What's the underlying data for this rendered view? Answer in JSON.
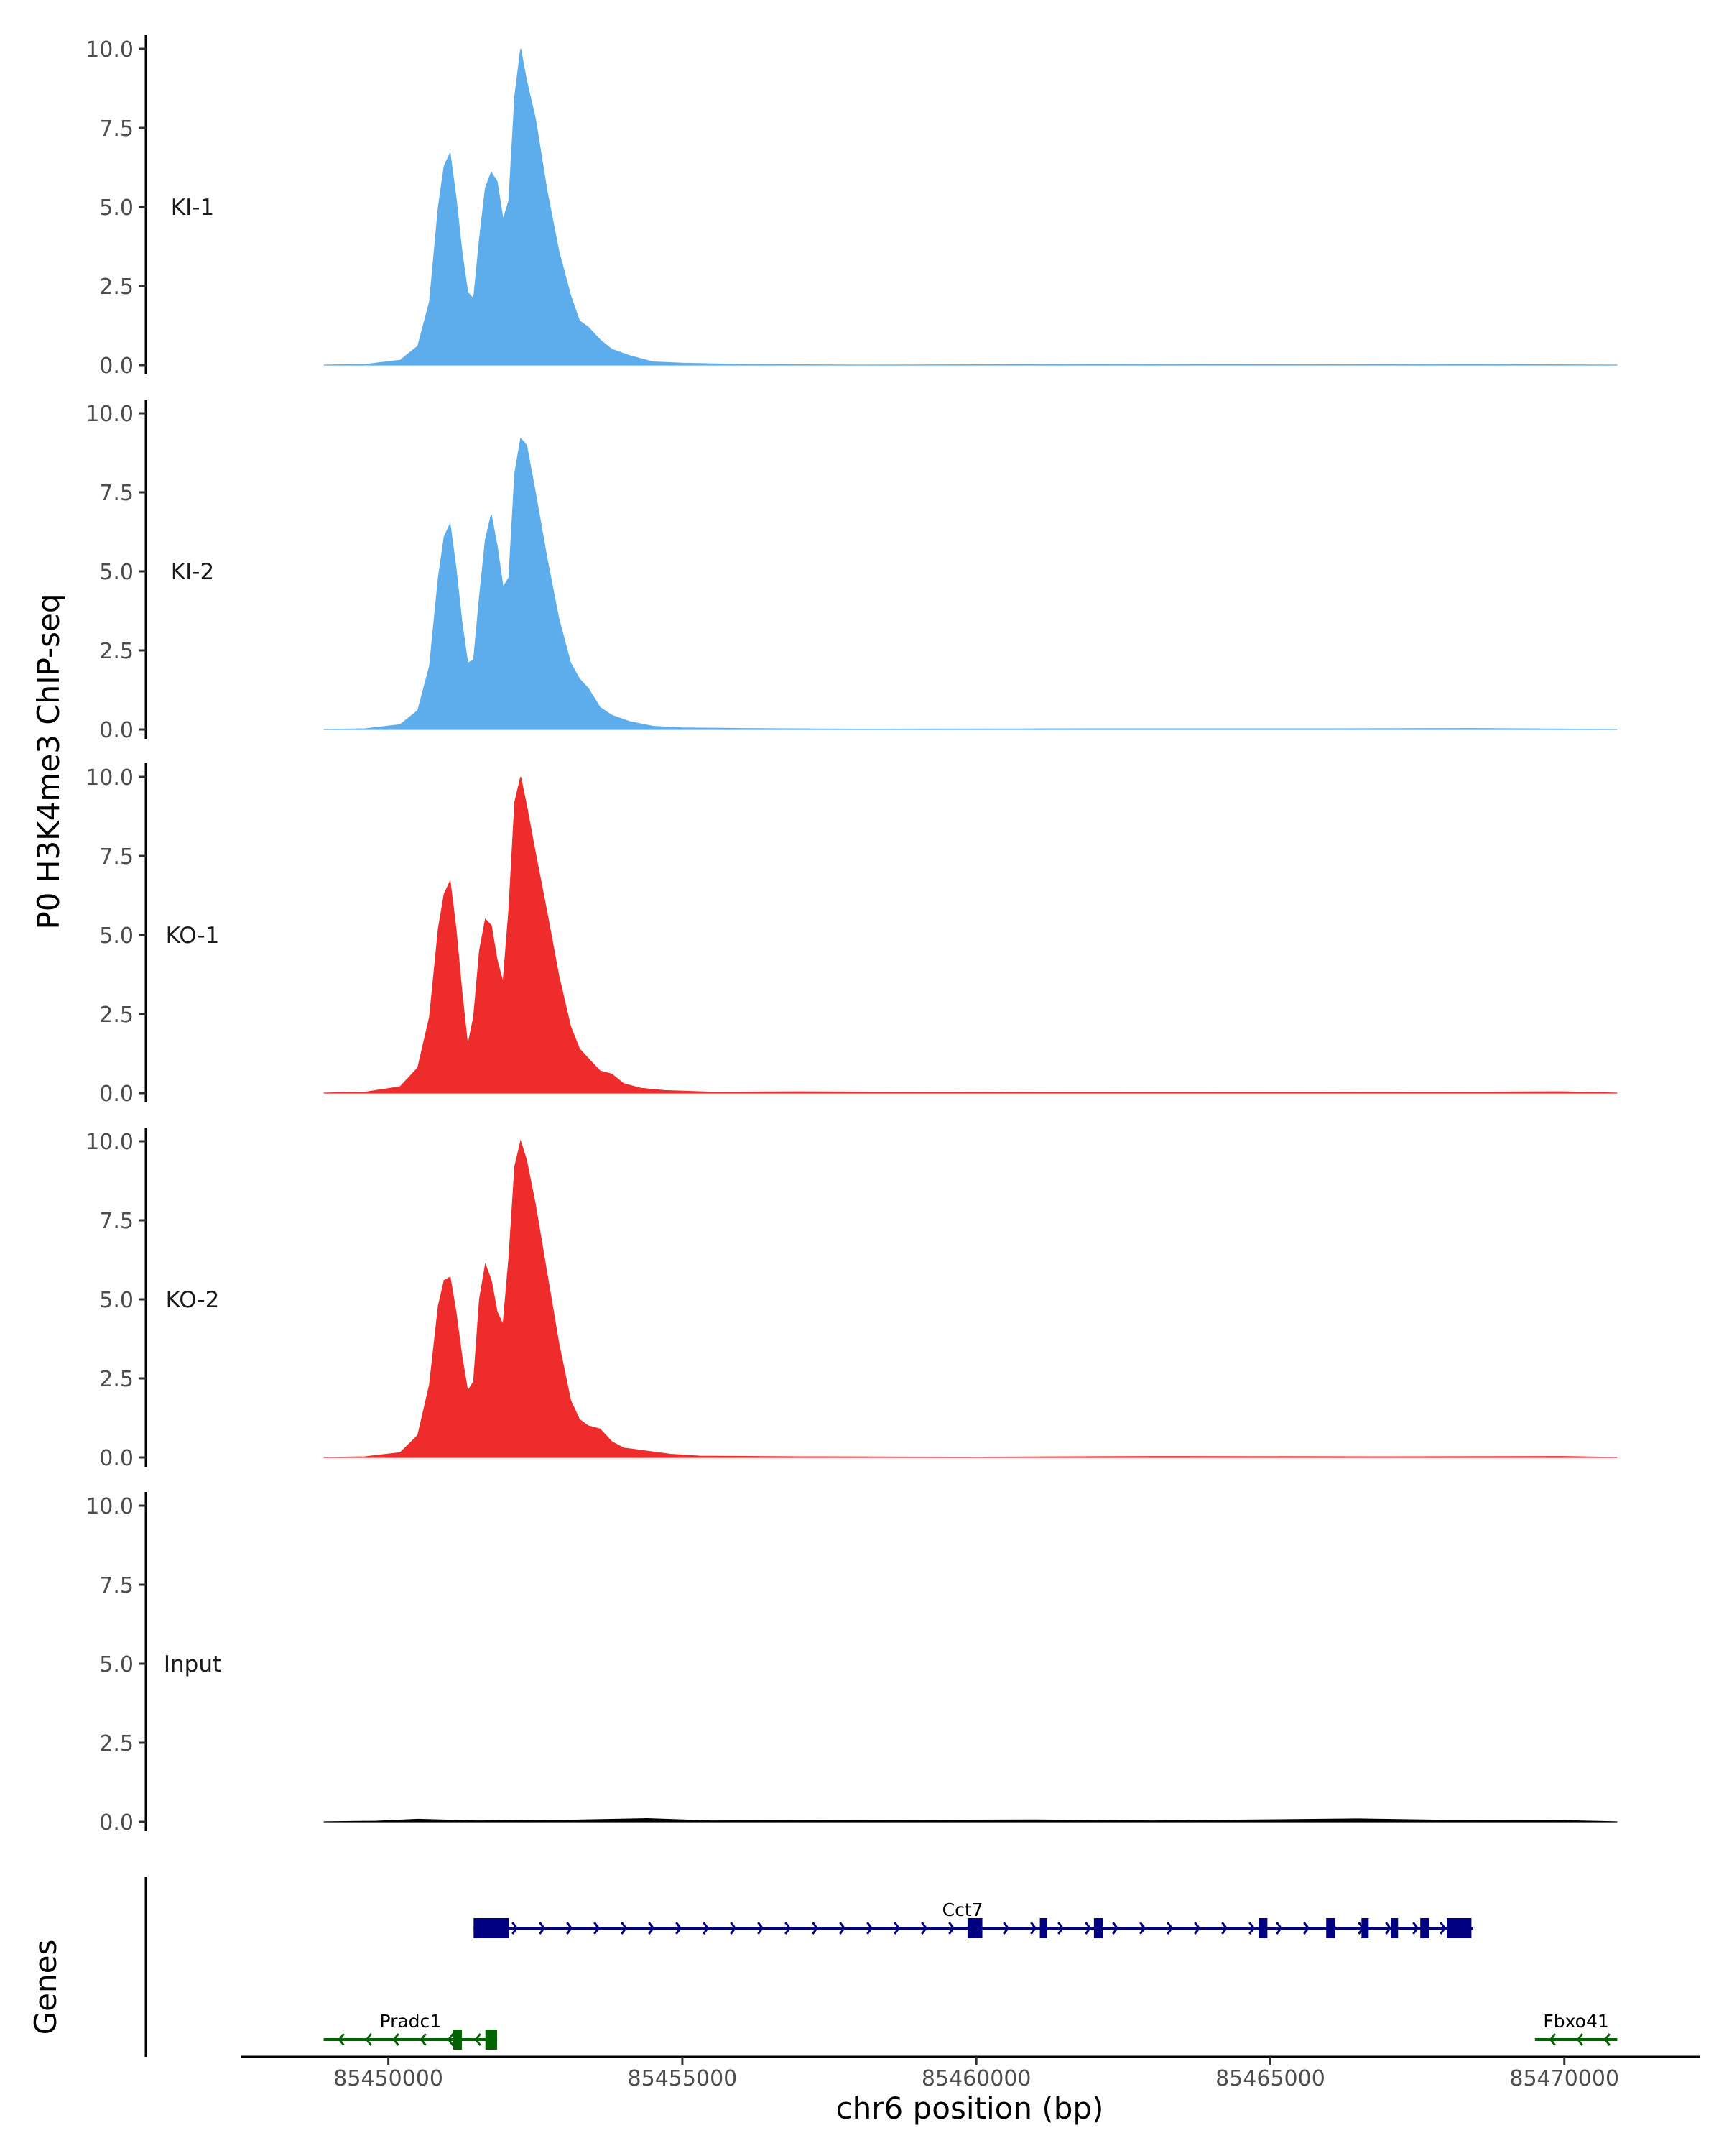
{
  "chart_data": {
    "type": "area",
    "y_axis_title": "P0 H3K4me3 ChIP-seq",
    "x_axis_title": "chr6 position (bp)",
    "xlim": [
      85447500,
      85472300
    ],
    "ylim": [
      0,
      10
    ],
    "y_ticks": [
      "0.0",
      "2.5",
      "5.0",
      "7.5",
      "10.0"
    ],
    "x_ticks": [
      85450000,
      85455000,
      85460000,
      85465000,
      85470000
    ],
    "x_tick_labels": [
      "85450000",
      "85455000",
      "85460000",
      "85465000",
      "85470000"
    ],
    "genes_track_title": "Genes",
    "tracks": [
      {
        "name": "KI-1",
        "color": "#5DADEC",
        "points": [
          [
            85448900,
            0
          ],
          [
            85449600,
            0.02
          ],
          [
            85450200,
            0.15
          ],
          [
            85450500,
            0.6
          ],
          [
            85450700,
            2
          ],
          [
            85450850,
            5
          ],
          [
            85450950,
            6.3
          ],
          [
            85451050,
            6.7
          ],
          [
            85451150,
            5.3
          ],
          [
            85451250,
            3.6
          ],
          [
            85451350,
            2.3
          ],
          [
            85451450,
            2.1
          ],
          [
            85451550,
            4
          ],
          [
            85451650,
            5.6
          ],
          [
            85451750,
            6.1
          ],
          [
            85451850,
            5.8
          ],
          [
            85451950,
            4.6
          ],
          [
            85452050,
            5.2
          ],
          [
            85452150,
            8.5
          ],
          [
            85452250,
            10
          ],
          [
            85452350,
            9
          ],
          [
            85452500,
            7.8
          ],
          [
            85452700,
            5.5
          ],
          [
            85452900,
            3.6
          ],
          [
            85453100,
            2.2
          ],
          [
            85453250,
            1.4
          ],
          [
            85453400,
            1.2
          ],
          [
            85453600,
            0.8
          ],
          [
            85453800,
            0.5
          ],
          [
            85454100,
            0.3
          ],
          [
            85454500,
            0.1
          ],
          [
            85455000,
            0.06
          ],
          [
            85456000,
            0.02
          ],
          [
            85458000,
            0
          ],
          [
            85462000,
            0.02
          ],
          [
            85466000,
            0.01
          ],
          [
            85468500,
            0.02
          ],
          [
            85470900,
            0
          ]
        ]
      },
      {
        "name": "KI-2",
        "color": "#5DADEC",
        "points": [
          [
            85448900,
            0
          ],
          [
            85449600,
            0.02
          ],
          [
            85450200,
            0.15
          ],
          [
            85450500,
            0.6
          ],
          [
            85450700,
            2
          ],
          [
            85450850,
            4.8
          ],
          [
            85450950,
            6.1
          ],
          [
            85451050,
            6.5
          ],
          [
            85451150,
            5.1
          ],
          [
            85451250,
            3.4
          ],
          [
            85451350,
            2.1
          ],
          [
            85451450,
            2.2
          ],
          [
            85451550,
            4.2
          ],
          [
            85451650,
            6
          ],
          [
            85451750,
            6.8
          ],
          [
            85451850,
            5.8
          ],
          [
            85451950,
            4.5
          ],
          [
            85452050,
            4.8
          ],
          [
            85452150,
            8.1
          ],
          [
            85452250,
            9.2
          ],
          [
            85452350,
            9
          ],
          [
            85452500,
            7.5
          ],
          [
            85452700,
            5.4
          ],
          [
            85452900,
            3.5
          ],
          [
            85453100,
            2.1
          ],
          [
            85453250,
            1.6
          ],
          [
            85453400,
            1.3
          ],
          [
            85453600,
            0.7
          ],
          [
            85453800,
            0.45
          ],
          [
            85454100,
            0.25
          ],
          [
            85454500,
            0.1
          ],
          [
            85455000,
            0.05
          ],
          [
            85456000,
            0.03
          ],
          [
            85458000,
            0.01
          ],
          [
            85462000,
            0.02
          ],
          [
            85466000,
            0.02
          ],
          [
            85468500,
            0.03
          ],
          [
            85470900,
            0
          ]
        ]
      },
      {
        "name": "KO-1",
        "color": "#EE2C2C",
        "points": [
          [
            85448900,
            0
          ],
          [
            85449600,
            0.03
          ],
          [
            85450200,
            0.2
          ],
          [
            85450500,
            0.8
          ],
          [
            85450700,
            2.4
          ],
          [
            85450850,
            5.2
          ],
          [
            85450950,
            6.3
          ],
          [
            85451050,
            6.7
          ],
          [
            85451150,
            5.2
          ],
          [
            85451250,
            3.2
          ],
          [
            85451350,
            1.5
          ],
          [
            85451450,
            2.4
          ],
          [
            85451550,
            4.5
          ],
          [
            85451650,
            5.5
          ],
          [
            85451750,
            5.3
          ],
          [
            85451850,
            4.2
          ],
          [
            85451950,
            3.5
          ],
          [
            85452050,
            5.8
          ],
          [
            85452150,
            9.2
          ],
          [
            85452250,
            10
          ],
          [
            85452350,
            9.1
          ],
          [
            85452500,
            7.6
          ],
          [
            85452700,
            5.7
          ],
          [
            85452900,
            3.7
          ],
          [
            85453100,
            2.1
          ],
          [
            85453250,
            1.4
          ],
          [
            85453400,
            1.1
          ],
          [
            85453600,
            0.7
          ],
          [
            85453800,
            0.6
          ],
          [
            85454000,
            0.3
          ],
          [
            85454300,
            0.15
          ],
          [
            85454700,
            0.08
          ],
          [
            85455500,
            0.03
          ],
          [
            85457000,
            0.04
          ],
          [
            85460000,
            0.02
          ],
          [
            85463000,
            0.03
          ],
          [
            85467000,
            0.02
          ],
          [
            85470000,
            0.04
          ],
          [
            85470900,
            0
          ]
        ]
      },
      {
        "name": "KO-2",
        "color": "#EE2C2C",
        "points": [
          [
            85448900,
            0
          ],
          [
            85449600,
            0.02
          ],
          [
            85450200,
            0.15
          ],
          [
            85450500,
            0.7
          ],
          [
            85450700,
            2.3
          ],
          [
            85450850,
            4.8
          ],
          [
            85450950,
            5.6
          ],
          [
            85451050,
            5.7
          ],
          [
            85451150,
            4.6
          ],
          [
            85451250,
            3.2
          ],
          [
            85451350,
            2.1
          ],
          [
            85451450,
            2.4
          ],
          [
            85451550,
            5
          ],
          [
            85451650,
            6.1
          ],
          [
            85451750,
            5.6
          ],
          [
            85451850,
            4.6
          ],
          [
            85451950,
            4.2
          ],
          [
            85452050,
            6.3
          ],
          [
            85452150,
            9.2
          ],
          [
            85452250,
            10
          ],
          [
            85452350,
            9.4
          ],
          [
            85452500,
            8
          ],
          [
            85452700,
            5.8
          ],
          [
            85452900,
            3.6
          ],
          [
            85453100,
            1.8
          ],
          [
            85453250,
            1.2
          ],
          [
            85453400,
            1
          ],
          [
            85453600,
            0.9
          ],
          [
            85453800,
            0.5
          ],
          [
            85454000,
            0.3
          ],
          [
            85454400,
            0.2
          ],
          [
            85454800,
            0.1
          ],
          [
            85455300,
            0.04
          ],
          [
            85457000,
            0.02
          ],
          [
            85460000,
            0.01
          ],
          [
            85463000,
            0.03
          ],
          [
            85467000,
            0.02
          ],
          [
            85470000,
            0.03
          ],
          [
            85470900,
            0
          ]
        ]
      },
      {
        "name": "Input",
        "color": "#000000",
        "points": [
          [
            85448900,
            0
          ],
          [
            85449800,
            0.02
          ],
          [
            85450500,
            0.08
          ],
          [
            85451500,
            0.03
          ],
          [
            85453000,
            0.05
          ],
          [
            85454400,
            0.1
          ],
          [
            85455500,
            0.03
          ],
          [
            85457000,
            0.04
          ],
          [
            85459000,
            0.05
          ],
          [
            85461000,
            0.06
          ],
          [
            85463000,
            0.03
          ],
          [
            85466500,
            0.09
          ],
          [
            85468000,
            0.05
          ],
          [
            85470000,
            0.04
          ],
          [
            85470900,
            0
          ]
        ]
      }
    ],
    "genes": [
      {
        "name": "Cct7",
        "strand": "+",
        "start": 85451450,
        "end": 85468450,
        "color": "#000080",
        "exons": [
          [
            85451450,
            85452050
          ],
          [
            85459850,
            85460000
          ],
          [
            85459980,
            85460080
          ],
          [
            85461080,
            85461180
          ],
          [
            85462000,
            85462150
          ],
          [
            85464800,
            85464950
          ],
          [
            85465950,
            85466100
          ],
          [
            85466550,
            85466620
          ],
          [
            85467050,
            85467150
          ],
          [
            85467550,
            85467700
          ],
          [
            85468000,
            85468420
          ]
        ]
      },
      {
        "name": "Pradc1",
        "strand": "-",
        "start": 85448900,
        "end": 85451850,
        "color": "#006400",
        "exons": [
          [
            85451100,
            85451250
          ],
          [
            85451650,
            85451850
          ]
        ]
      },
      {
        "name": "Fbxo41",
        "strand": "-",
        "start": 85469500,
        "end": 85470900,
        "color": "#006400",
        "exons": []
      }
    ]
  }
}
